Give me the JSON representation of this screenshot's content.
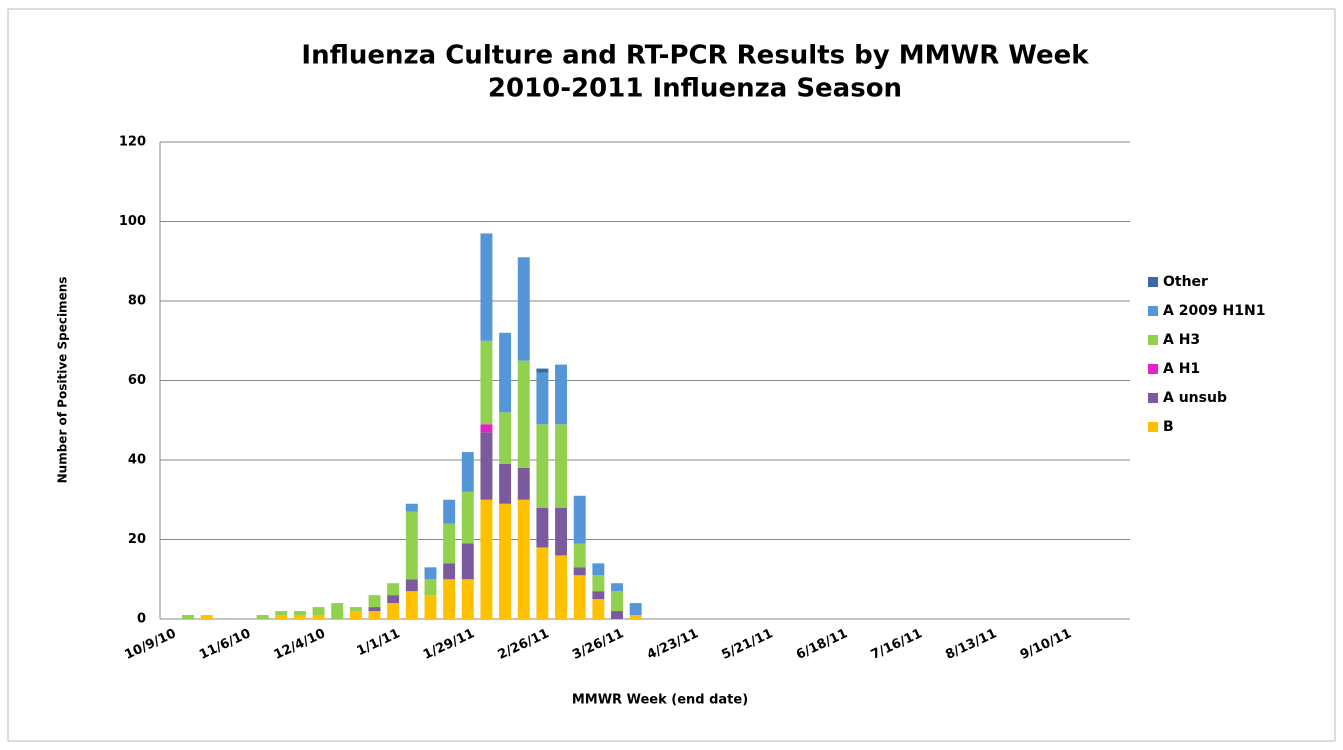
{
  "chart_data": {
    "type": "stacked-bar",
    "title": "Influenza Culture and RT-PCR Results by MMWR Week",
    "subtitle": "2010-2011 Influenza Season",
    "x_label": "MMWR Week (end date)",
    "y_label": "Number of Positive Specimens",
    "categories": [
      "10/9/10",
      null,
      null,
      null,
      "11/6/10",
      null,
      null,
      null,
      "12/4/10",
      null,
      null,
      null,
      "1/1/11",
      null,
      null,
      null,
      "1/29/11",
      null,
      null,
      null,
      "2/26/11",
      null,
      null,
      null,
      "3/26/11",
      null,
      null,
      null,
      "4/23/11",
      null,
      null,
      null,
      "5/21/11",
      null,
      null,
      null,
      "6/18/11",
      null,
      null,
      null,
      "7/16/11",
      null,
      null,
      null,
      "8/13/11",
      null,
      null,
      null,
      "9/10/11",
      null,
      null,
      null
    ],
    "series": [
      {
        "name": "B",
        "color": "#ffc000",
        "values": [
          0,
          0,
          1,
          0,
          0,
          0,
          1,
          1,
          1,
          0,
          2,
          2,
          4,
          7,
          6,
          10,
          10,
          30,
          29,
          30,
          18,
          16,
          11,
          5,
          0,
          1,
          0,
          0,
          0,
          0,
          0,
          0,
          0,
          0,
          0,
          0,
          0,
          0,
          0,
          0,
          0,
          0,
          0,
          0,
          0,
          0,
          0,
          0,
          0,
          0,
          0,
          0
        ]
      },
      {
        "name": "A unsub",
        "color": "#7b5b9e",
        "values": [
          0,
          0,
          0,
          0,
          0,
          0,
          0,
          0,
          0,
          0,
          0,
          1,
          2,
          3,
          0,
          4,
          9,
          17,
          10,
          8,
          10,
          12,
          2,
          2,
          2,
          0,
          0,
          0,
          0,
          0,
          0,
          0,
          0,
          0,
          0,
          0,
          0,
          0,
          0,
          0,
          0,
          0,
          0,
          0,
          0,
          0,
          0,
          0,
          0,
          0,
          0,
          0
        ]
      },
      {
        "name": "A H1",
        "color": "#e621c8",
        "values": [
          0,
          0,
          0,
          0,
          0,
          0,
          0,
          0,
          0,
          0,
          0,
          0,
          0,
          0,
          0,
          0,
          0,
          2,
          0,
          0,
          0,
          0,
          0,
          0,
          0,
          0,
          0,
          0,
          0,
          0,
          0,
          0,
          0,
          0,
          0,
          0,
          0,
          0,
          0,
          0,
          0,
          0,
          0,
          0,
          0,
          0,
          0,
          0,
          0,
          0,
          0,
          0
        ]
      },
      {
        "name": "A H3",
        "color": "#92d050",
        "values": [
          0,
          1,
          0,
          0,
          0,
          1,
          1,
          1,
          2,
          4,
          1,
          3,
          3,
          17,
          4,
          10,
          13,
          21,
          13,
          27,
          21,
          21,
          6,
          4,
          5,
          0,
          0,
          0,
          0,
          0,
          0,
          0,
          0,
          0,
          0,
          0,
          0,
          0,
          0,
          0,
          0,
          0,
          0,
          0,
          0,
          0,
          0,
          0,
          0,
          0,
          0,
          0
        ]
      },
      {
        "name": "A 2009 H1N1",
        "color": "#5596d8",
        "values": [
          0,
          0,
          0,
          0,
          0,
          0,
          0,
          0,
          0,
          0,
          0,
          0,
          0,
          2,
          3,
          6,
          10,
          27,
          20,
          26,
          13,
          15,
          12,
          3,
          2,
          3,
          0,
          0,
          0,
          0,
          0,
          0,
          0,
          0,
          0,
          0,
          0,
          0,
          0,
          0,
          0,
          0,
          0,
          0,
          0,
          0,
          0,
          0,
          0,
          0,
          0,
          0
        ]
      },
      {
        "name": "Other",
        "color": "#3b6aa6",
        "values": [
          0,
          0,
          0,
          0,
          0,
          0,
          0,
          0,
          0,
          0,
          0,
          0,
          0,
          0,
          0,
          0,
          0,
          0,
          0,
          0,
          1,
          0,
          0,
          0,
          0,
          0,
          0,
          0,
          0,
          0,
          0,
          0,
          0,
          0,
          0,
          0,
          0,
          0,
          0,
          0,
          0,
          0,
          0,
          0,
          0,
          0,
          0,
          0,
          0,
          0,
          0,
          0
        ]
      }
    ],
    "ylim": [
      0,
      120
    ],
    "yticks": [
      0,
      20,
      40,
      60,
      80,
      100,
      120
    ],
    "grid": true,
    "legend": "right"
  }
}
